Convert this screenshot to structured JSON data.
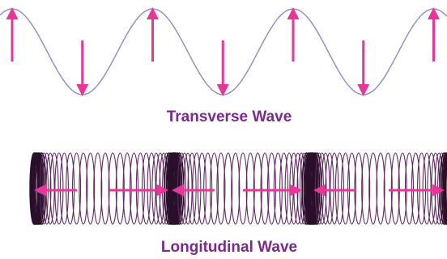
{
  "transverse_wave": {
    "label": "Transverse Wave"
  },
  "longitudinal_wave": {
    "label": "Longitudinal Wave"
  }
}
